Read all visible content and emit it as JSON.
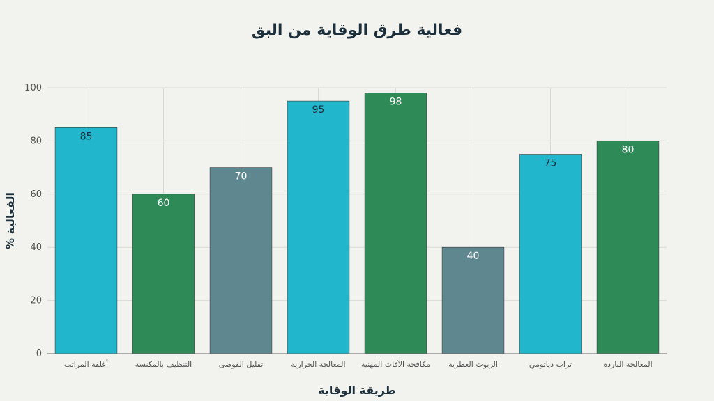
{
  "chart_data": {
    "type": "bar",
    "title": "فعالية طرق الوقاية من البق",
    "xlabel": "طريقة الوقاية",
    "ylabel": "% الفعالية",
    "ylim": [
      0,
      100
    ],
    "yticks": [
      0,
      20,
      40,
      60,
      80,
      100
    ],
    "grid": true,
    "categories": [
      "أغلفة المراتب",
      "التنظيف بالمكنسة",
      "تقليل الفوضى",
      "المعالجة الحرارية",
      "مكافحة الآفات المهنية",
      "الزيوت العطرية",
      "تراب دياتومي",
      "المعالجة الباردة"
    ],
    "values": [
      85,
      60,
      70,
      95,
      98,
      40,
      75,
      80
    ],
    "colors": [
      "#22b6cc",
      "#2e8b57",
      "#5f8790",
      "#22b6cc",
      "#2e8b57",
      "#5f8790",
      "#22b6cc",
      "#2e8b57"
    ],
    "label_colors": [
      "#1c2f3a",
      "#ffffff",
      "#ffffff",
      "#1c2f3a",
      "#ffffff",
      "#ffffff",
      "#1c2f3a",
      "#ffffff"
    ]
  }
}
